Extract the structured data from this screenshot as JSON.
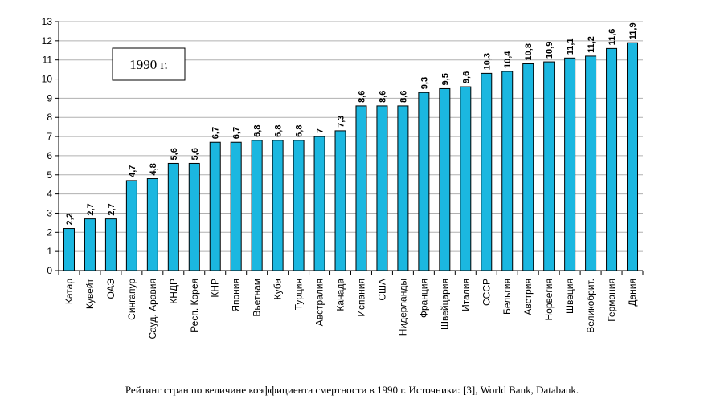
{
  "chart_data": {
    "type": "bar",
    "categories": [
      "Катар",
      "Кувейт",
      "ОАЭ",
      "Сингапур",
      "Сауд. Аравия",
      "КНДР",
      "Респ. Корея",
      "КНР",
      "Япония",
      "Вьетнам",
      "Куба",
      "Турция",
      "Австралия",
      "Канада",
      "Испания",
      "США",
      "Нидерланды",
      "Франция",
      "Швейцария",
      "Италия",
      "СССР",
      "Бельгия",
      "Австрия",
      "Норвегия",
      "Швеция",
      "Великобрит.",
      "Германия",
      "Дания"
    ],
    "values": [
      2.2,
      2.7,
      2.7,
      4.7,
      4.8,
      5.6,
      5.6,
      6.7,
      6.7,
      6.8,
      6.8,
      6.8,
      7,
      7.3,
      8.6,
      8.6,
      8.6,
      9.3,
      9.5,
      9.6,
      10.3,
      10.4,
      10.8,
      10.9,
      11.1,
      11.2,
      11.6,
      11.9
    ],
    "data_labels": [
      "2,2",
      "2,7",
      "2,7",
      "4,7",
      "4,8",
      "5,6",
      "5,6",
      "6,7",
      "6,7",
      "6,8",
      "6,8",
      "6,8",
      "7",
      "7,3",
      "8,6",
      "8,6",
      "8,6",
      "9,3",
      "9,5",
      "9,6",
      "10,3",
      "10,4",
      "10,8",
      "10,9",
      "11,1",
      "11,2",
      "11,6",
      "11,9"
    ],
    "yticks": [
      "0",
      "1",
      "2",
      "3",
      "4",
      "5",
      "6",
      "7",
      "8",
      "9",
      "10",
      "11",
      "12",
      "13"
    ],
    "ylim": [
      0,
      13
    ],
    "grid": true,
    "annotation": "1990 г.",
    "bar_color": "#1bb7e0",
    "title": "",
    "xlabel": "",
    "ylabel": ""
  },
  "caption": "Рейтинг стран по величине коэффициента смертности в 1990 г. Источники: [3], World Bank, Databank."
}
